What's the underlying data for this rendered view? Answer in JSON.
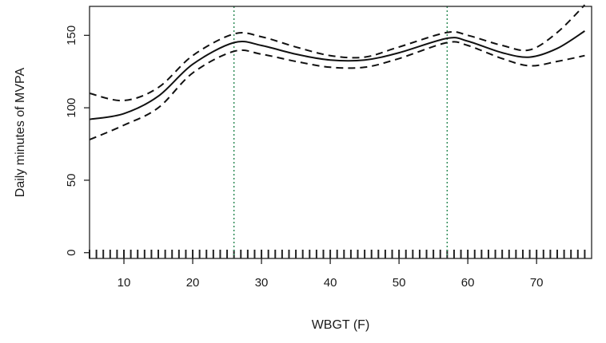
{
  "chart_data": {
    "type": "line",
    "title": "",
    "xlabel": "WBGT (F)",
    "ylabel": "Daily minutes of MVPA",
    "xlim": [
      5,
      78
    ],
    "ylim": [
      -4,
      170
    ],
    "grid": false,
    "legend": "none",
    "x_ticks": [
      "10",
      "20",
      "30",
      "40",
      "50",
      "60",
      "70"
    ],
    "y_ticks": [
      "0",
      "50",
      "100",
      "150"
    ],
    "series": [
      {
        "role": "estimate",
        "style": "solid",
        "x": [
          5,
          10,
          15,
          20,
          26,
          30,
          35,
          40,
          45,
          50,
          57,
          60,
          65,
          69,
          73,
          77
        ],
        "y": [
          92,
          96,
          108,
          130,
          145,
          143,
          137,
          133,
          133,
          138,
          148,
          146,
          138,
          135,
          141,
          153
        ]
      },
      {
        "role": "upper-ci",
        "style": "dashed",
        "x": [
          5,
          10,
          15,
          20,
          26,
          30,
          35,
          40,
          45,
          50,
          57,
          60,
          65,
          69,
          73,
          77
        ],
        "y": [
          110,
          105,
          114,
          136,
          151,
          149,
          142,
          136,
          135,
          142,
          152,
          150,
          143,
          140,
          152,
          171
        ]
      },
      {
        "role": "lower-ci",
        "style": "dashed",
        "x": [
          5,
          10,
          15,
          20,
          26,
          30,
          35,
          40,
          45,
          50,
          57,
          60,
          65,
          69,
          73,
          77
        ],
        "y": [
          78,
          88,
          100,
          124,
          139,
          137,
          132,
          128,
          128,
          134,
          145,
          143,
          134,
          129,
          132,
          136
        ]
      }
    ],
    "reference_lines_x": [
      26,
      57
    ],
    "reference_line_color": "#2e8b57",
    "rug_x_range": [
      5,
      77
    ],
    "rug_x_step": 1
  }
}
